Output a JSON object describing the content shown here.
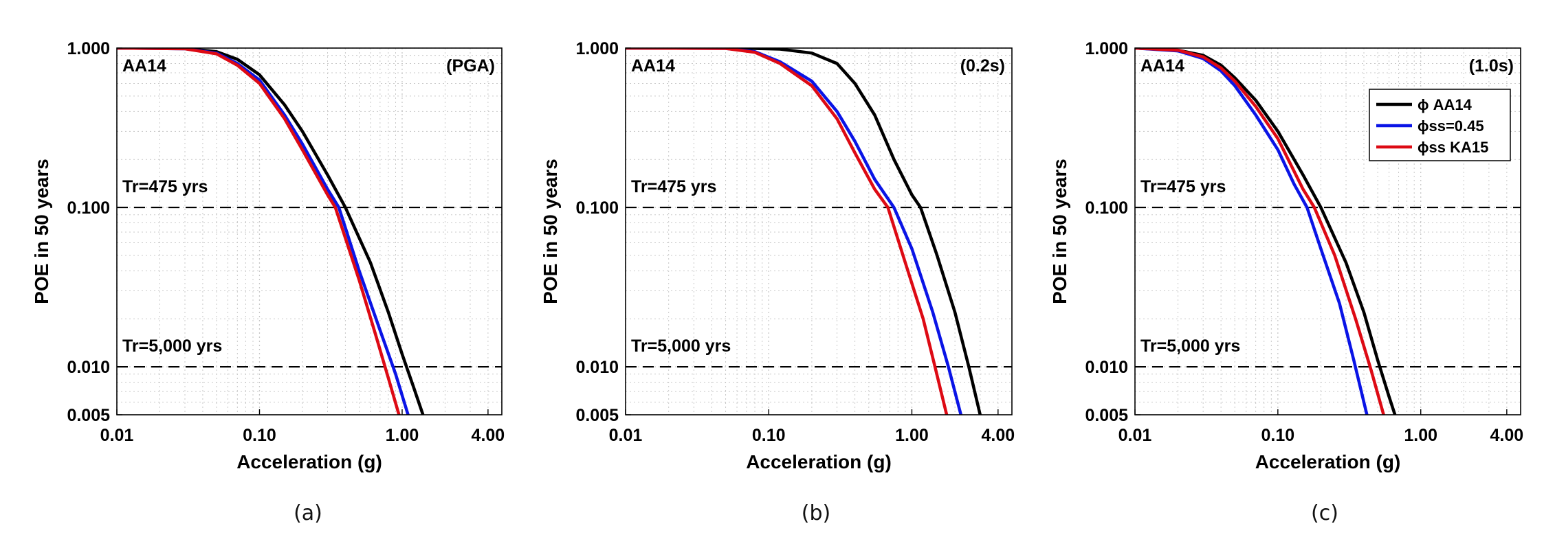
{
  "colors": {
    "aa14": "#000000",
    "ss045": "#0a14e6",
    "ka15": "#dd0a14",
    "grid": "#c8c8c8",
    "reference": "#000000"
  },
  "captions": [
    "(a)",
    "(b)",
    "(c)"
  ],
  "chart_data": [
    {
      "type": "line",
      "panel": "(a)",
      "corner_label": "AA14",
      "period_label": "(PGA)",
      "xlabel": "Acceleration (g)",
      "ylabel": "POE in 50 years",
      "xscale": "log",
      "yscale": "log",
      "xlim": [
        0.01,
        5
      ],
      "ylim": [
        0.005,
        1
      ],
      "xticks": [
        0.01,
        0.1,
        1,
        4
      ],
      "xtick_labels": [
        "0.01",
        "0.10",
        "1.00",
        "4.00"
      ],
      "yticks": [
        0.005,
        0.01,
        0.1,
        1
      ],
      "ytick_labels": [
        "0.005",
        "0.010",
        "0.100",
        "1.000"
      ],
      "grid": true,
      "reference_lines": [
        {
          "y": 0.1,
          "label": "Tr=475 yrs"
        },
        {
          "y": 0.01,
          "label": "Tr=5,000 yrs"
        }
      ],
      "series": [
        {
          "name": "AA14",
          "color": "#000000",
          "x": [
            0.01,
            0.03,
            0.05,
            0.07,
            0.1,
            0.15,
            0.2,
            0.3,
            0.4,
            0.6,
            0.8,
            1.0,
            1.2,
            1.4
          ],
          "y": [
            1.0,
            0.995,
            0.95,
            0.85,
            0.68,
            0.44,
            0.3,
            0.16,
            0.1,
            0.045,
            0.022,
            0.012,
            0.0075,
            0.005
          ]
        },
        {
          "name": "ss=0.45",
          "color": "#0a14e6",
          "x": [
            0.01,
            0.03,
            0.05,
            0.07,
            0.1,
            0.15,
            0.2,
            0.3,
            0.36,
            0.5,
            0.7,
            0.9,
            1.1
          ],
          "y": [
            1.0,
            0.99,
            0.93,
            0.8,
            0.63,
            0.38,
            0.25,
            0.13,
            0.1,
            0.04,
            0.017,
            0.009,
            0.005
          ]
        },
        {
          "name": "ss KA15",
          "color": "#dd0a14",
          "x": [
            0.01,
            0.03,
            0.05,
            0.07,
            0.1,
            0.15,
            0.2,
            0.3,
            0.34,
            0.5,
            0.65,
            0.8,
            0.95
          ],
          "y": [
            1.0,
            0.99,
            0.92,
            0.78,
            0.6,
            0.36,
            0.23,
            0.12,
            0.1,
            0.035,
            0.016,
            0.0085,
            0.005
          ]
        }
      ]
    },
    {
      "type": "line",
      "panel": "(b)",
      "corner_label": "AA14",
      "period_label": "(0.2s)",
      "xlabel": "Acceleration (g)",
      "ylabel": "POE in 50 years",
      "xscale": "log",
      "yscale": "log",
      "xlim": [
        0.01,
        5
      ],
      "ylim": [
        0.005,
        1
      ],
      "xticks": [
        0.01,
        0.1,
        1,
        4
      ],
      "xtick_labels": [
        "0.01",
        "0.10",
        "1.00",
        "4.00"
      ],
      "yticks": [
        0.005,
        0.01,
        0.1,
        1
      ],
      "ytick_labels": [
        "0.005",
        "0.010",
        "0.100",
        "1.000"
      ],
      "grid": true,
      "reference_lines": [
        {
          "y": 0.1,
          "label": "Tr=475 yrs"
        },
        {
          "y": 0.01,
          "label": "Tr=5,000 yrs"
        }
      ],
      "series": [
        {
          "name": "AA14",
          "color": "#000000",
          "x": [
            0.01,
            0.07,
            0.12,
            0.2,
            0.3,
            0.4,
            0.55,
            0.75,
            1.0,
            1.15,
            1.5,
            2.0,
            2.5,
            3.0
          ],
          "y": [
            1.0,
            0.998,
            0.985,
            0.93,
            0.8,
            0.6,
            0.38,
            0.2,
            0.12,
            0.1,
            0.05,
            0.022,
            0.01,
            0.005
          ]
        },
        {
          "name": "ss=0.45",
          "color": "#0a14e6",
          "x": [
            0.01,
            0.05,
            0.08,
            0.12,
            0.2,
            0.3,
            0.4,
            0.55,
            0.75,
            1.0,
            1.4,
            1.8,
            2.2
          ],
          "y": [
            1.0,
            0.995,
            0.95,
            0.82,
            0.62,
            0.4,
            0.26,
            0.15,
            0.1,
            0.055,
            0.022,
            0.01,
            0.005
          ]
        },
        {
          "name": "ss KA15",
          "color": "#dd0a14",
          "x": [
            0.01,
            0.05,
            0.08,
            0.12,
            0.2,
            0.3,
            0.4,
            0.55,
            0.68,
            0.9,
            1.2,
            1.45,
            1.75
          ],
          "y": [
            1.0,
            0.995,
            0.94,
            0.8,
            0.58,
            0.36,
            0.22,
            0.13,
            0.1,
            0.045,
            0.02,
            0.01,
            0.005
          ]
        }
      ]
    },
    {
      "type": "line",
      "panel": "(c)",
      "corner_label": "AA14",
      "period_label": "(1.0s)",
      "xlabel": "Acceleration (g)",
      "ylabel": "POE in 50 years",
      "xscale": "log",
      "yscale": "log",
      "xlim": [
        0.01,
        5
      ],
      "ylim": [
        0.005,
        1
      ],
      "xticks": [
        0.01,
        0.1,
        1,
        4
      ],
      "xtick_labels": [
        "0.01",
        "0.10",
        "1.00",
        "4.00"
      ],
      "yticks": [
        0.005,
        0.01,
        0.1,
        1
      ],
      "ytick_labels": [
        "0.005",
        "0.010",
        "0.100",
        "1.000"
      ],
      "grid": true,
      "legend_position": "top-right",
      "legend_entries": [
        "ϕ AA14",
        "ϕss=0.45",
        "ϕss KA15"
      ],
      "reference_lines": [
        {
          "y": 0.1,
          "label": "Tr=475 yrs"
        },
        {
          "y": 0.01,
          "label": "Tr=5,000 yrs"
        }
      ],
      "series": [
        {
          "name": "ϕ AA14",
          "color": "#000000",
          "x": [
            0.01,
            0.02,
            0.03,
            0.04,
            0.05,
            0.07,
            0.1,
            0.15,
            0.2,
            0.3,
            0.4,
            0.5,
            0.6,
            0.66
          ],
          "y": [
            1.0,
            0.97,
            0.9,
            0.78,
            0.65,
            0.47,
            0.3,
            0.16,
            0.1,
            0.045,
            0.022,
            0.011,
            0.0065,
            0.005
          ]
        },
        {
          "name": "ϕss=0.45",
          "color": "#0a14e6",
          "x": [
            0.01,
            0.02,
            0.03,
            0.04,
            0.05,
            0.07,
            0.1,
            0.13,
            0.16,
            0.2,
            0.27,
            0.34,
            0.42
          ],
          "y": [
            1.0,
            0.96,
            0.86,
            0.72,
            0.58,
            0.38,
            0.23,
            0.14,
            0.1,
            0.055,
            0.025,
            0.011,
            0.005
          ]
        },
        {
          "name": "ϕss KA15",
          "color": "#dd0a14",
          "x": [
            0.01,
            0.02,
            0.03,
            0.04,
            0.05,
            0.07,
            0.1,
            0.15,
            0.18,
            0.25,
            0.35,
            0.45,
            0.55
          ],
          "y": [
            1.0,
            0.97,
            0.88,
            0.75,
            0.62,
            0.43,
            0.27,
            0.13,
            0.1,
            0.05,
            0.02,
            0.0095,
            0.005
          ]
        }
      ]
    }
  ]
}
